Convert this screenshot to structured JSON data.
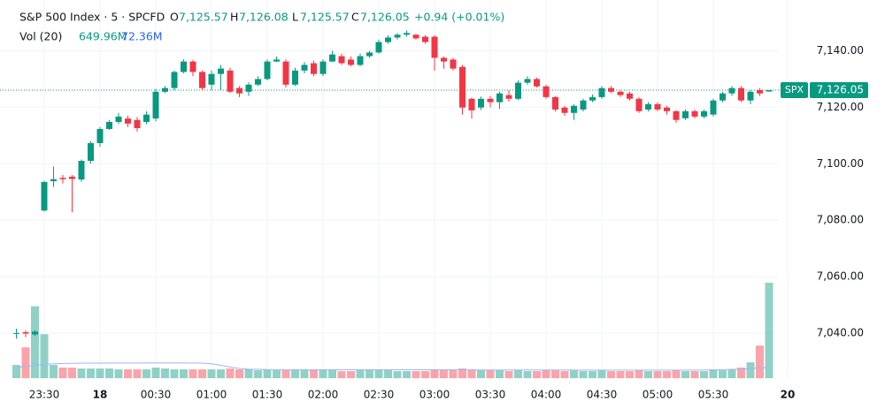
{
  "header": {
    "title": "S&P 500 Index · 5 · SPCFD",
    "o_label": "O",
    "o_value": "7,125.57",
    "h_label": "H",
    "h_value": "7,126.08",
    "l_label": "L",
    "l_value": "7,125.57",
    "c_label": "C",
    "c_value": "7,126.05",
    "change": "+0.94 (+0.01%)",
    "vol_label": "Vol (20)",
    "vol_value": "649.96M",
    "vol_ma_value": "72.36M"
  },
  "chart_data": {
    "type": "candlestick",
    "categories": [
      null,
      null,
      null,
      "23:30",
      null,
      null,
      null,
      null,
      null,
      "18",
      null,
      null,
      null,
      null,
      null,
      "00:30",
      null,
      null,
      null,
      null,
      null,
      "01:00",
      null,
      null,
      null,
      null,
      null,
      "01:30",
      null,
      null,
      null,
      null,
      null,
      "02:00",
      null,
      null,
      null,
      null,
      null,
      "02:30",
      null,
      null,
      null,
      null,
      null,
      "03:00",
      null,
      null,
      null,
      null,
      null,
      "03:30",
      null,
      null,
      null,
      null,
      null,
      "04:00",
      null,
      null,
      null,
      null,
      null,
      "04:30",
      null,
      null,
      null,
      null,
      null,
      "05:00",
      null,
      null,
      null,
      null,
      null,
      "05:30",
      null,
      null,
      null,
      null,
      null,
      null,
      null,
      "20"
    ],
    "open": [
      7040,
      7040.3,
      7039.5,
      7083.4,
      7093.8,
      7095,
      7095.4,
      7094.4,
      7101,
      7107.3,
      7112.3,
      7114.8,
      7116,
      7115.5,
      7114.8,
      7116,
      7125.5,
      7126.8,
      7132.5,
      7136.2,
      7132.5,
      7128,
      7131.8,
      7133,
      7126.8,
      7125.5,
      7128,
      7130,
      7136.2,
      7136.2,
      7128,
      7133,
      7135.6,
      7131.8,
      7136.2,
      7138.1,
      7136.9,
      7135,
      7138.1,
      7139.4,
      7143.1,
      7144.7,
      7145.7,
      7145.7,
      7145,
      7145,
      7137.5,
      7136.9,
      7134.3,
      7123,
      7119.9,
      7123,
      7121.8,
      7124.3,
      7123,
      7128.7,
      7130,
      7127.4,
      7123.6,
      7119.9,
      7118,
      7119.2,
      7122.4,
      7123.6,
      7126.8,
      7125.5,
      7124.9,
      7123,
      7119.2,
      7121.1,
      7119.9,
      7118.6,
      7116.1,
      7118.6,
      7116.7,
      7117.4,
      7122.4,
      7124.9,
      7126.8,
      7122.4,
      7126.1,
      7125.57,
      null,
      null
    ],
    "high": [
      7041.5,
      7041,
      7041,
      7094,
      7099,
      7096,
      7096,
      7101.5,
      7108,
      7113,
      7115.5,
      7118,
      7117,
      7116.5,
      7118.5,
      7126.5,
      7127.5,
      7133,
      7137,
      7136.8,
      7133,
      7133,
      7135,
      7134,
      7127.5,
      7128.8,
      7131,
      7137,
      7138,
      7137,
      7134,
      7136,
      7136.5,
      7137,
      7140,
      7139,
      7138,
      7139,
      7140,
      7144,
      7145.5,
      7146.3,
      7147.2,
      7146,
      7145.5,
      7145.5,
      7138,
      7137.5,
      7135,
      7123.5,
      7123.8,
      7124,
      7125.5,
      7126,
      7129.5,
      7131,
      7130.5,
      7128,
      7124,
      7120.5,
      7121,
      7123,
      7124.5,
      7127.5,
      7127.5,
      7126,
      7125.5,
      7123.6,
      7121.8,
      7121.8,
      7120.5,
      7119,
      7119.2,
      7119.2,
      7119.2,
      7123,
      7125.5,
      7127.5,
      7127.5,
      7126.1,
      7126.8,
      7126.08,
      null,
      null
    ],
    "low": [
      7038,
      7038.5,
      7039,
      7083,
      7091.8,
      7093,
      7082.8,
      7093.6,
      7100,
      7106,
      7112,
      7114,
      7113,
      7111.4,
      7114,
      7115,
      7125,
      7126,
      7132,
      7131,
      7126,
      7126,
      7126,
      7125,
      7123.6,
      7124,
      7127.5,
      7129.5,
      7136,
      7127,
      7127.5,
      7132,
      7131,
      7131,
      7136,
      7135,
      7134.5,
      7134.5,
      7137.5,
      7139,
      7142.5,
      7144,
      7145,
      7144,
      7142.5,
      7133,
      7133.7,
      7133,
      7117.4,
      7116,
      7119,
      7120,
      7119.5,
      7122,
      7122.5,
      7128,
      7127,
      7123,
      7118.5,
      7117,
      7115.5,
      7118.5,
      7121.8,
      7123,
      7125,
      7123.6,
      7122.4,
      7118,
      7118.5,
      7118.6,
      7117.4,
      7114.5,
      7115.5,
      7116.1,
      7116.1,
      7116.7,
      7121.8,
      7124,
      7121.8,
      7121.1,
      7124,
      7125.57,
      null,
      null
    ],
    "close": [
      7040,
      7039.8,
      7040.5,
      7093.5,
      7094.5,
      7094.5,
      7094.6,
      7101,
      7107.3,
      7112.3,
      7114.8,
      7116.7,
      7114.2,
      7112.6,
      7117.4,
      7125.5,
      7126.8,
      7132.5,
      7136.2,
      7132.5,
      7126.8,
      7131.8,
      7133.7,
      7125.5,
      7124.9,
      7128,
      7130,
      7136.2,
      7136.9,
      7128,
      7133,
      7135,
      7131.8,
      7136.2,
      7138.7,
      7135.6,
      7135,
      7138.1,
      7139.4,
      7143.1,
      7144.7,
      7145.7,
      7146.3,
      7144.4,
      7143.1,
      7137.5,
      7136.2,
      7133.7,
      7119.9,
      7118.9,
      7123,
      7121.8,
      7124.9,
      7123,
      7128.7,
      7130,
      7127.4,
      7123.6,
      7119.2,
      7118,
      7120.5,
      7122.4,
      7123.6,
      7126.8,
      7125.5,
      7124.3,
      7123,
      7118.6,
      7121.1,
      7119.2,
      7118.6,
      7115.5,
      7118.6,
      7116.7,
      7118.6,
      7122.4,
      7124.9,
      7126.8,
      7122.4,
      7125.5,
      7124.9,
      7126.05,
      null,
      null
    ],
    "volume": [
      90,
      210,
      490,
      300,
      90,
      72,
      72,
      66,
      66,
      66,
      66,
      60,
      60,
      60,
      60,
      72,
      66,
      60,
      60,
      60,
      60,
      60,
      60,
      66,
      60,
      60,
      54,
      60,
      54,
      54,
      54,
      54,
      54,
      54,
      54,
      48,
      48,
      54,
      54,
      54,
      54,
      48,
      48,
      48,
      48,
      60,
      54,
      54,
      66,
      60,
      54,
      54,
      54,
      48,
      54,
      48,
      48,
      54,
      54,
      48,
      54,
      48,
      48,
      54,
      48,
      48,
      48,
      54,
      48,
      48,
      48,
      54,
      48,
      48,
      48,
      60,
      54,
      60,
      72,
      108,
      222,
      649.96,
      null,
      null
    ],
    "volume_ma": [
      72,
      80,
      88,
      94,
      98,
      100,
      101,
      102,
      102,
      102,
      103,
      103,
      103,
      103,
      104,
      104,
      104,
      104,
      104,
      103,
      102,
      98,
      88,
      76,
      66,
      62,
      60,
      59,
      58,
      58,
      57,
      57,
      57,
      57,
      57,
      57,
      57,
      57,
      57,
      57,
      57,
      57,
      57,
      57,
      57,
      57,
      57,
      57,
      57,
      57,
      56,
      56,
      56,
      56,
      56,
      56,
      56,
      56,
      56,
      56,
      55,
      55,
      55,
      55,
      55,
      55,
      55,
      55,
      55,
      55,
      55,
      55,
      55,
      55,
      56,
      57,
      58,
      60,
      62,
      66,
      70,
      72.36,
      null,
      null
    ],
    "up_color": "#089981",
    "down_color": "#f23645",
    "volume_ma_color": "#9fb4f5",
    "ylim": [
      7024,
      7158
    ],
    "yticks": [
      {
        "value": 7040,
        "label": "7,040.00"
      },
      {
        "value": 7060,
        "label": "7,060.00"
      },
      {
        "value": 7080,
        "label": "7,080.00"
      },
      {
        "value": 7100,
        "label": "7,100.00"
      },
      {
        "value": 7120,
        "label": "7,120.00"
      },
      {
        "value": 7140,
        "label": "7,140.00"
      }
    ],
    "grid": true,
    "symbol": "SPX",
    "last_price": {
      "value": 7126.05,
      "label": "7,126.05"
    }
  }
}
